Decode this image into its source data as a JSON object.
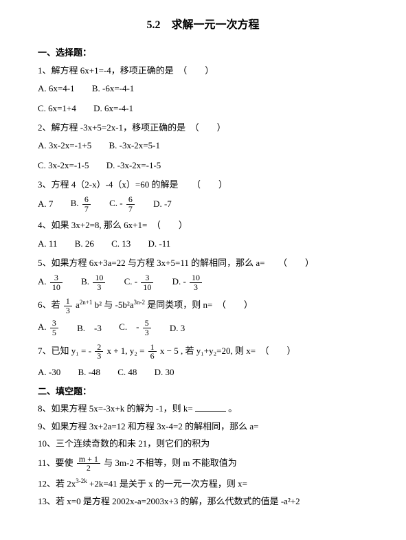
{
  "title": "5.2　求解一元一次方程",
  "section1": "一、选择题：",
  "q1": "1、解方程 6x+1=-4，移项正确的是　（　　）",
  "q1a": "A. 6x=4-1",
  "q1b": "B. -6x=-4-1",
  "q1c": "C. 6x=1+4",
  "q1d": "D. 6x=-4-1",
  "q2": "2、解方程 -3x+5=2x-1，移项正确的是　（　　）",
  "q2a": "A. 3x-2x=-1+5",
  "q2b": "B. -3x-2x=5-1",
  "q2c": "C. 3x-2x=-1-5",
  "q2d": "D. -3x-2x=-1-5",
  "q3": "3、方程 4（2-x）-4（x）=60 的解是　　（　　）",
  "q3a": "A. 7",
  "q3b": "B.",
  "q3bf_n": "6",
  "q3bf_d": "7",
  "q3c": "C. -",
  "q3cf_n": "6",
  "q3cf_d": "7",
  "q3d": "D. -7",
  "q4": "4、如果 3x+2=8, 那么 6x+1=　（　　）",
  "q4a": "A. 11",
  "q4b": "B. 26",
  "q4c": "C. 13",
  "q4d": "D. -11",
  "q5": "5、如果方程 6x+3a=22 与方程 3x+5=11 的解相同，那么 a=　　（　　）",
  "q5a": "A.",
  "q5af_n": "3",
  "q5af_d": "10",
  "q5b": "B.",
  "q5bf_n": "10",
  "q5bf_d": "3",
  "q5c": "C. -",
  "q5cf_n": "3",
  "q5cf_d": "10",
  "q5d": "D. -",
  "q5df_n": "10",
  "q5df_d": "3",
  "q6_pre": "6、若",
  "q6f1_n": "1",
  "q6f1_d": "3",
  "q6_mid": "a",
  "q6_sup1": "2n+1",
  "q6_mid2": "b² 与 -5b²a",
  "q6_sup2": "3n-2",
  "q6_post": " 是同类项，则 n=　（　　）",
  "q6a": "A.",
  "q6af_n": "3",
  "q6af_d": "5",
  "q6b": "B.　-3",
  "q6c": "C.　-",
  "q6cf_n": "5",
  "q6cf_d": "3",
  "q6d": "D. 3",
  "q7_pre": "7、已知 y₁ = -",
  "q7f1_n": "2",
  "q7f1_d": "3",
  "q7_mid1": "x + 1, y₂ =",
  "q7f2_n": "1",
  "q7f2_d": "6",
  "q7_post": "x − 5 , 若 y₁+y₂=20, 则 x=　（　　）",
  "q7a": "A. -30",
  "q7b": "B. -48",
  "q7c": "C. 48",
  "q7d": "D. 30",
  "section2": "二、填空题：",
  "q8_pre": "8、如果方程 5x=-3x+k 的解为 -1，则 k= ",
  "q8_post": " 。",
  "q9": "9、如果方程 3x+2a=12 和方程 3x-4=2 的解相同，那么 a=",
  "q10": "10、三个连续奇数的和未 21，则它们的积为",
  "q11_pre": "11、要使",
  "q11f_n": "m + 1",
  "q11f_d": "2",
  "q11_post": "与 3m-2 不相等，则 m 不能取值为",
  "q12_pre": "12、若 2x",
  "q12_sup": "3-2k",
  "q12_post": "+2k=41 是关于 x 的一元一次方程，则 x=",
  "q13": "13、若 x=0 是方程 2002x-a=2003x+3 的解，那么代数式的值是 -a²+2"
}
